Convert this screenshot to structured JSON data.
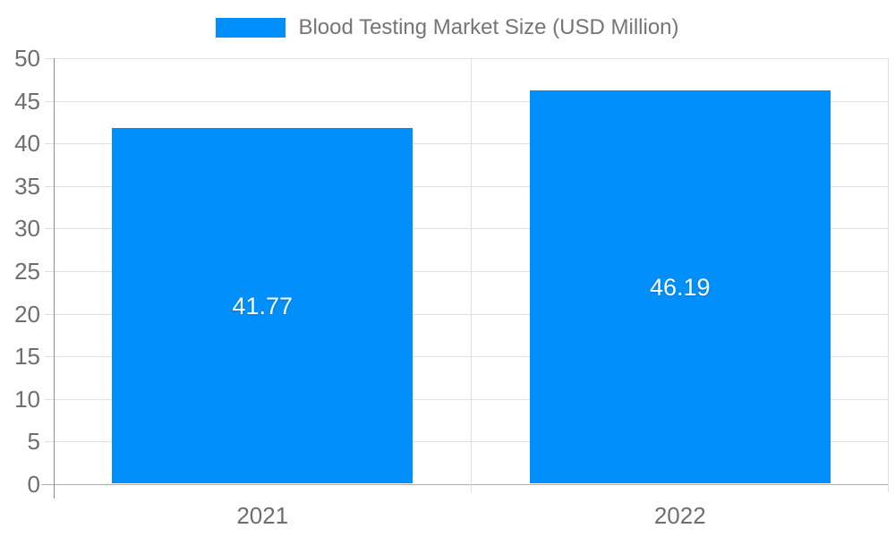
{
  "chart_data": {
    "type": "bar",
    "title": "Blood Testing Market Size (USD Million)",
    "categories": [
      "2021",
      "2022"
    ],
    "series": [
      {
        "name": "Blood Testing Market Size (USD Million)",
        "values": [
          41.77,
          46.19
        ]
      }
    ],
    "data_labels": [
      "41.77",
      "46.19"
    ],
    "xlabel": "",
    "ylabel": "",
    "ylim": [
      0,
      50
    ],
    "ytick_step": 5,
    "ytick_labels": [
      "0",
      "5",
      "10",
      "15",
      "20",
      "25",
      "30",
      "35",
      "40",
      "45",
      "50"
    ],
    "grid": true,
    "legend_position": "top-center",
    "colors": {
      "bar": "#008FFB",
      "grid": "#e0e0e0",
      "zero_line": "#adadad",
      "y_axis_line": "#8e8e8e",
      "tick_label": "#6e6e6e",
      "legend_text": "#757575",
      "data_label": "#ffffff",
      "background": "#ffffff"
    }
  }
}
